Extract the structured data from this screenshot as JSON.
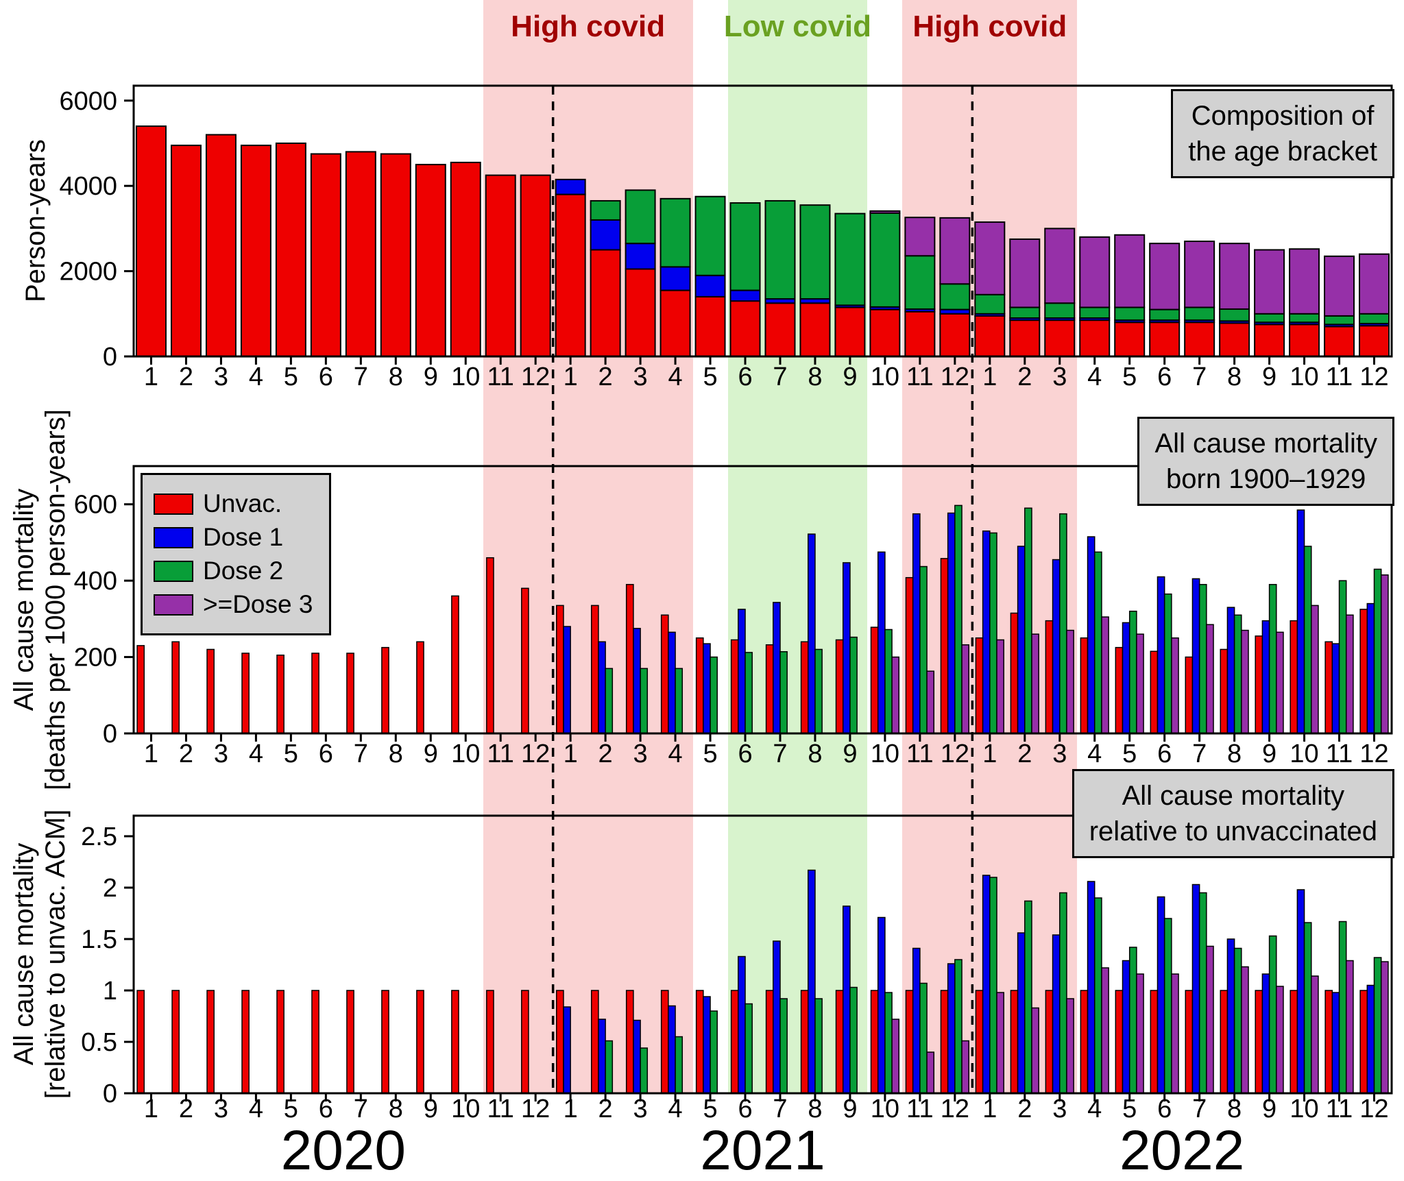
{
  "bands": [
    {
      "label": "High covid",
      "kind": "high",
      "startIndex": 10,
      "endIndex": 16
    },
    {
      "label": "Low covid",
      "kind": "low",
      "startIndex": 17,
      "endIndex": 21
    },
    {
      "label": "High covid",
      "kind": "high",
      "startIndex": 22,
      "endIndex": 27
    }
  ],
  "colors": {
    "unvac": "#ee0000",
    "dose1": "#0000ee",
    "dose2": "#089e38",
    "dose3": "#9630a8",
    "band_high": "#fad3d3",
    "band_low": "#d8f3cd",
    "high_text": "#a00000",
    "low_text": "#6aa121",
    "box_bg": "#d2d2d2"
  },
  "years": [
    "2020",
    "2021",
    "2022"
  ],
  "month_labels": [
    "1",
    "2",
    "3",
    "4",
    "5",
    "6",
    "7",
    "8",
    "9",
    "10",
    "11",
    "12"
  ],
  "legend": {
    "entries": [
      {
        "label": "Unvac.",
        "color_key": "unvac"
      },
      {
        "label": "Dose 1",
        "color_key": "dose1"
      },
      {
        "label": "Dose 2",
        "color_key": "dose2"
      },
      {
        "label": ">=Dose 3",
        "color_key": "dose3"
      }
    ]
  },
  "panels": [
    {
      "title_lines": [
        "Composition of",
        "the age bracket"
      ],
      "ylabel_lines": [
        "Person-years",
        ""
      ]
    },
    {
      "title_lines": [
        "All cause mortality",
        "born 1900–1929"
      ],
      "ylabel_lines": [
        "All cause mortality",
        "[deaths per 1000 person-years]"
      ]
    },
    {
      "title_lines": [
        "All cause mortality",
        "relative to unvaccinated"
      ],
      "ylabel_lines": [
        "All cause mortality",
        "[relative to unvac. ACM]"
      ]
    }
  ],
  "chart_data": [
    {
      "type": "bar",
      "variant": "stacked",
      "title": "Composition of the age bracket",
      "ylabel": "Person-years",
      "x": {
        "years": [
          "2020",
          "2021",
          "2022"
        ],
        "months_per_year": [
          1,
          2,
          3,
          4,
          5,
          6,
          7,
          8,
          9,
          10,
          11,
          12
        ]
      },
      "yticks": [
        0,
        2000,
        4000,
        6000
      ],
      "ylim": [
        0,
        6350
      ],
      "series": [
        {
          "name": "Unvac.",
          "color_key": "unvac",
          "values": [
            5400,
            4950,
            5200,
            4950,
            5000,
            4750,
            4800,
            4750,
            4500,
            4550,
            4250,
            4250,
            3800,
            2500,
            2050,
            1550,
            1400,
            1300,
            1250,
            1250,
            1150,
            1100,
            1050,
            1000,
            950,
            850,
            850,
            850,
            800,
            800,
            800,
            780,
            750,
            750,
            700,
            720
          ]
        },
        {
          "name": "Dose 1",
          "color_key": "dose1",
          "values": [
            0,
            0,
            0,
            0,
            0,
            0,
            0,
            0,
            0,
            0,
            0,
            0,
            350,
            700,
            600,
            550,
            500,
            250,
            100,
            100,
            50,
            60,
            60,
            100,
            50,
            50,
            50,
            50,
            50,
            50,
            50,
            50,
            50,
            50,
            50,
            50
          ]
        },
        {
          "name": "Dose 2",
          "color_key": "dose2",
          "values": [
            0,
            0,
            0,
            0,
            0,
            0,
            0,
            0,
            0,
            0,
            0,
            0,
            0,
            450,
            1250,
            1600,
            1850,
            2050,
            2300,
            2200,
            2150,
            2200,
            1250,
            600,
            450,
            250,
            350,
            250,
            300,
            250,
            300,
            280,
            200,
            200,
            200,
            230
          ]
        },
        {
          "name": ">=Dose 3",
          "color_key": "dose3",
          "values": [
            0,
            0,
            0,
            0,
            0,
            0,
            0,
            0,
            0,
            0,
            0,
            0,
            0,
            0,
            0,
            0,
            0,
            0,
            0,
            0,
            0,
            50,
            900,
            1550,
            1700,
            1600,
            1750,
            1650,
            1700,
            1550,
            1550,
            1540,
            1500,
            1520,
            1400,
            1400
          ]
        }
      ]
    },
    {
      "type": "bar",
      "variant": "grouped",
      "title": "All cause mortality born 1900–1929",
      "ylabel": "All cause mortality [deaths per 1000 person-years]",
      "x": {
        "years": [
          "2020",
          "2021",
          "2022"
        ],
        "months_per_year": [
          1,
          2,
          3,
          4,
          5,
          6,
          7,
          8,
          9,
          10,
          11,
          12
        ]
      },
      "yticks": [
        0,
        200,
        400,
        600
      ],
      "ylim": [
        0,
        700
      ],
      "series": [
        {
          "name": "Unvac.",
          "color_key": "unvac",
          "values": [
            230,
            240,
            220,
            210,
            205,
            210,
            210,
            225,
            240,
            360,
            460,
            380,
            335,
            335,
            390,
            310,
            250,
            245,
            232,
            240,
            245,
            278,
            408,
            458,
            250,
            315,
            295,
            250,
            225,
            215,
            200,
            220,
            255,
            295,
            240,
            325
          ]
        },
        {
          "name": "Dose 1",
          "color_key": "dose1",
          "values": [
            null,
            null,
            null,
            null,
            null,
            null,
            null,
            null,
            null,
            null,
            null,
            null,
            280,
            240,
            275,
            265,
            235,
            325,
            343,
            522,
            447,
            475,
            575,
            577,
            530,
            490,
            455,
            515,
            290,
            410,
            405,
            330,
            295,
            585,
            235,
            340
          ]
        },
        {
          "name": "Dose 2",
          "color_key": "dose2",
          "values": [
            null,
            null,
            null,
            null,
            null,
            null,
            null,
            null,
            null,
            null,
            null,
            null,
            null,
            170,
            170,
            170,
            200,
            212,
            214,
            220,
            252,
            272,
            437,
            597,
            525,
            590,
            575,
            475,
            320,
            365,
            390,
            310,
            390,
            490,
            400,
            430
          ]
        },
        {
          "name": ">=Dose 3",
          "color_key": "dose3",
          "values": [
            null,
            null,
            null,
            null,
            null,
            null,
            null,
            null,
            null,
            null,
            null,
            null,
            null,
            null,
            null,
            null,
            null,
            null,
            null,
            null,
            null,
            200,
            163,
            232,
            245,
            260,
            270,
            305,
            260,
            250,
            285,
            270,
            265,
            335,
            310,
            415
          ]
        }
      ]
    },
    {
      "type": "bar",
      "variant": "grouped",
      "title": "All cause mortality relative to unvaccinated",
      "ylabel": "All cause mortality [relative to unvac. ACM]",
      "x": {
        "years": [
          "2020",
          "2021",
          "2022"
        ],
        "months_per_year": [
          1,
          2,
          3,
          4,
          5,
          6,
          7,
          8,
          9,
          10,
          11,
          12
        ]
      },
      "yticks": [
        0,
        0.5,
        1,
        1.5,
        2,
        2.5
      ],
      "ylim": [
        0,
        2.7
      ],
      "series": [
        {
          "name": "Unvac.",
          "color_key": "unvac",
          "values": [
            1,
            1,
            1,
            1,
            1,
            1,
            1,
            1,
            1,
            1,
            1,
            1,
            1,
            1,
            1,
            1,
            1,
            1,
            1,
            1,
            1,
            1,
            1,
            1,
            1,
            1,
            1,
            1,
            1,
            1,
            1,
            1,
            1,
            1,
            1,
            1
          ]
        },
        {
          "name": "Dose 1",
          "color_key": "dose1",
          "values": [
            null,
            null,
            null,
            null,
            null,
            null,
            null,
            null,
            null,
            null,
            null,
            null,
            0.84,
            0.72,
            0.71,
            0.85,
            0.94,
            1.33,
            1.48,
            2.17,
            1.82,
            1.71,
            1.41,
            1.26,
            2.12,
            1.56,
            1.54,
            2.06,
            1.29,
            1.91,
            2.03,
            1.5,
            1.16,
            1.98,
            0.98,
            1.05
          ]
        },
        {
          "name": "Dose 2",
          "color_key": "dose2",
          "values": [
            null,
            null,
            null,
            null,
            null,
            null,
            null,
            null,
            null,
            null,
            null,
            null,
            null,
            0.51,
            0.44,
            0.55,
            0.8,
            0.87,
            0.92,
            0.92,
            1.03,
            0.98,
            1.07,
            1.3,
            2.1,
            1.87,
            1.95,
            1.9,
            1.42,
            1.7,
            1.95,
            1.41,
            1.53,
            1.66,
            1.67,
            1.32
          ]
        },
        {
          "name": ">=Dose 3",
          "color_key": "dose3",
          "values": [
            null,
            null,
            null,
            null,
            null,
            null,
            null,
            null,
            null,
            null,
            null,
            null,
            null,
            null,
            null,
            null,
            null,
            null,
            null,
            null,
            null,
            0.72,
            0.4,
            0.51,
            0.98,
            0.83,
            0.92,
            1.22,
            1.16,
            1.16,
            1.43,
            1.23,
            1.04,
            1.14,
            1.29,
            1.28
          ]
        }
      ]
    }
  ]
}
